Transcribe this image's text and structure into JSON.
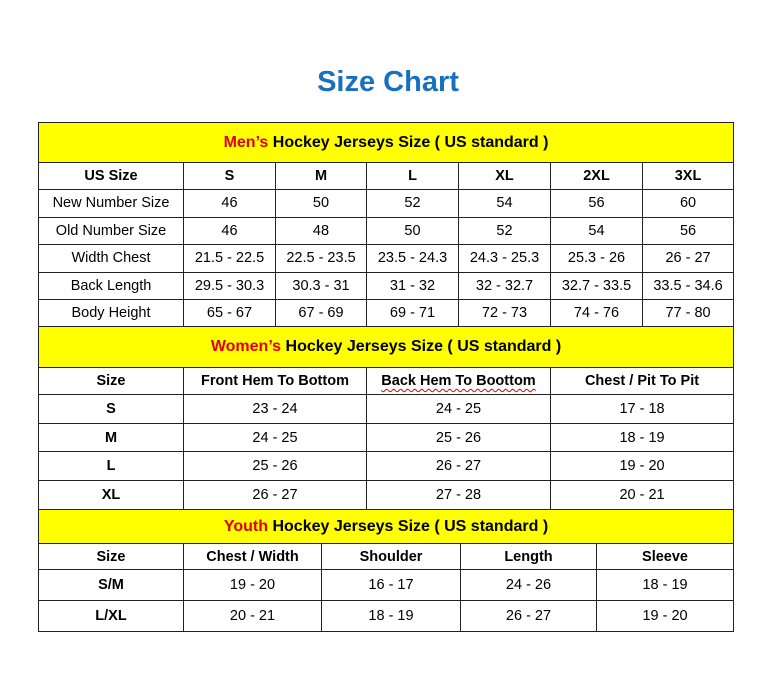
{
  "title": "Size Chart",
  "colors": {
    "title": "#1a70c0",
    "band": "#ffff00",
    "highlight": "#e00000"
  },
  "men": {
    "band_highlight": "Men’s",
    "band_rest": " Hockey Jerseys Size ( US standard )",
    "headers": [
      "US Size",
      "S",
      "M",
      "L",
      "XL",
      "2XL",
      "3XL"
    ],
    "rows": [
      [
        "New Number Size",
        "46",
        "50",
        "52",
        "54",
        "56",
        "60"
      ],
      [
        "Old Number Size",
        "46",
        "48",
        "50",
        "52",
        "54",
        "56"
      ],
      [
        "Width Chest",
        "21.5 - 22.5",
        "22.5 - 23.5",
        "23.5 - 24.3",
        "24.3 - 25.3",
        "25.3 - 26",
        "26 - 27"
      ],
      [
        "Back Length",
        "29.5 - 30.3",
        "30.3 - 31",
        "31 - 32",
        "32 - 32.7",
        "32.7 - 33.5",
        "33.5 - 34.6"
      ],
      [
        "Body Height",
        "65 - 67",
        "67 - 69",
        "69 - 71",
        "72 - 73",
        "74 - 76",
        "77 - 80"
      ]
    ]
  },
  "women": {
    "band_highlight": "Women’s",
    "band_rest": " Hockey Jerseys Size ( US standard )",
    "headers": [
      "Size",
      "Front Hem To Bottom",
      "Back Hem To Boottom",
      "Chest / Pit To Pit"
    ],
    "rows": [
      [
        "S",
        "23 - 24",
        "24 - 25",
        "17 - 18"
      ],
      [
        "M",
        "24 - 25",
        "25 - 26",
        "18 - 19"
      ],
      [
        "L",
        "25 - 26",
        "26 - 27",
        "19 - 20"
      ],
      [
        "XL",
        "26 - 27",
        "27 - 28",
        "20 - 21"
      ]
    ]
  },
  "youth": {
    "band_highlight": "Youth",
    "band_rest": " Hockey Jerseys Size ( US standard )",
    "headers": [
      "Size",
      "Chest / Width",
      "Shoulder",
      "Length",
      "Sleeve"
    ],
    "rows": [
      [
        "S/M",
        "19 - 20",
        "16 - 17",
        "24 - 26",
        "18 - 19"
      ],
      [
        "L/XL",
        "20 - 21",
        "18 - 19",
        "26 - 27",
        "19 - 20"
      ]
    ]
  }
}
